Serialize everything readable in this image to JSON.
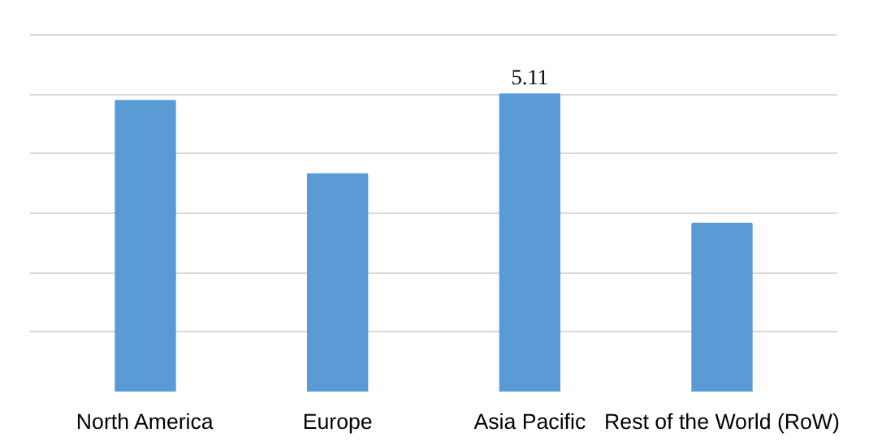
{
  "chart_data": {
    "type": "bar",
    "categories": [
      "North America",
      "Europe",
      "Asia Pacific",
      "Rest of the World (RoW)"
    ],
    "values": [
      5.0,
      3.74,
      5.11,
      2.89
    ],
    "color": "#5b9bd5",
    "value_labels": [
      null,
      null,
      "5.11",
      null
    ],
    "grid": "y",
    "tick_labels": "x"
  }
}
